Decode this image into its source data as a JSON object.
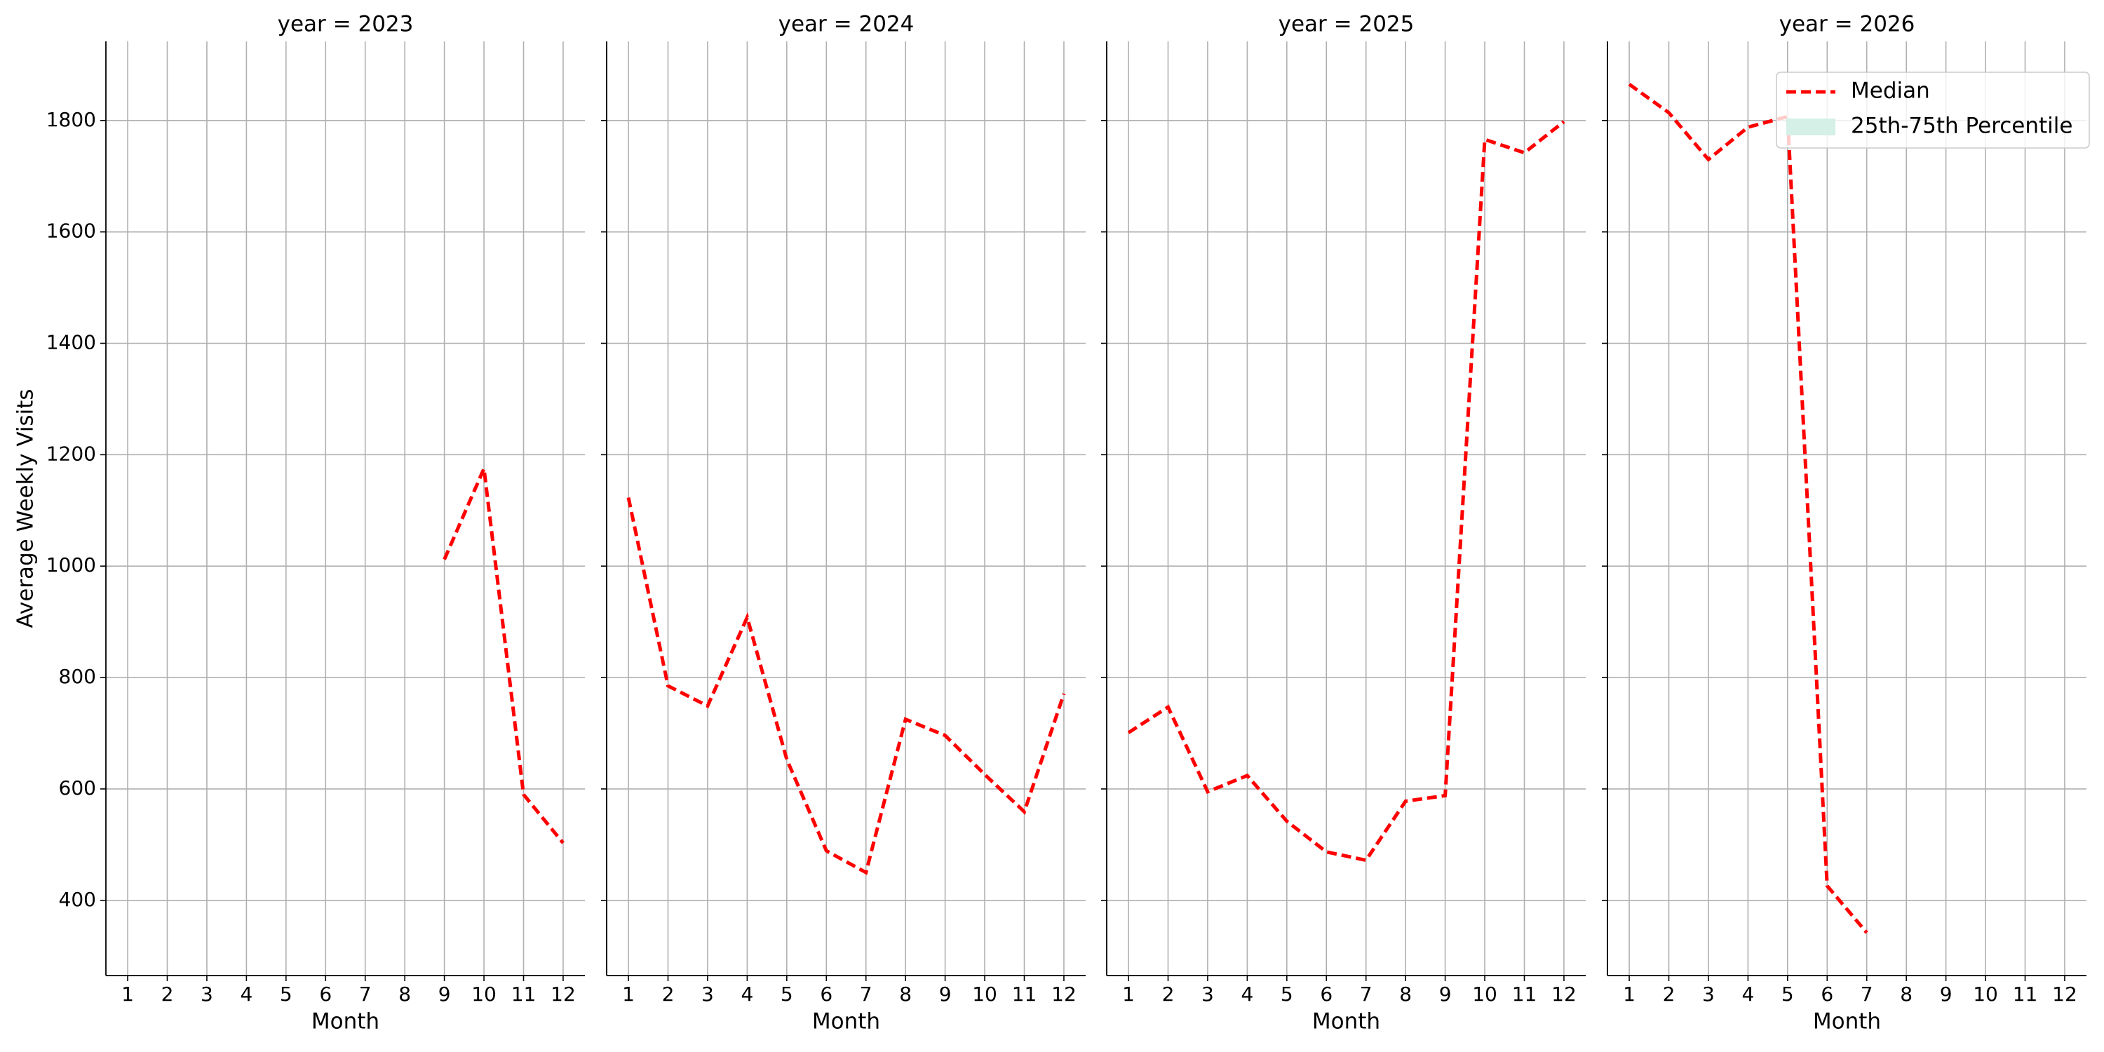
{
  "chart_data": [
    {
      "type": "line",
      "title": "year = 2023",
      "xlabel": "Month",
      "ylabel": "Average Weekly Visits",
      "x": [
        1,
        2,
        3,
        4,
        5,
        6,
        7,
        8,
        9,
        10,
        11,
        12
      ],
      "xlim": [
        0.45,
        12.55
      ],
      "xticks": [
        1,
        2,
        3,
        4,
        5,
        6,
        7,
        8,
        9,
        10,
        11,
        12
      ],
      "ylim": [
        265,
        1942
      ],
      "yticks": [
        400,
        600,
        800,
        1000,
        1200,
        1400,
        1600,
        1800
      ],
      "grid": true,
      "series": [
        {
          "name": "Median",
          "color": "#ff0000",
          "values": [
            null,
            null,
            null,
            null,
            null,
            null,
            null,
            null,
            1012,
            1175,
            590,
            503
          ]
        }
      ]
    },
    {
      "type": "line",
      "title": "year = 2024",
      "xlabel": "Month",
      "x": [
        1,
        2,
        3,
        4,
        5,
        6,
        7,
        8,
        9,
        10,
        11,
        12
      ],
      "xlim": [
        0.45,
        12.55
      ],
      "xticks": [
        1,
        2,
        3,
        4,
        5,
        6,
        7,
        8,
        9,
        10,
        11,
        12
      ],
      "ylim": [
        265,
        1942
      ],
      "yticks": [
        400,
        600,
        800,
        1000,
        1200,
        1400,
        1600,
        1800
      ],
      "grid": true,
      "series": [
        {
          "name": "Median",
          "color": "#ff0000",
          "values": [
            1123,
            785,
            749,
            908,
            653,
            489,
            450,
            725,
            696,
            626,
            559,
            771
          ]
        }
      ]
    },
    {
      "type": "line",
      "title": "year = 2025",
      "xlabel": "Month",
      "x": [
        1,
        2,
        3,
        4,
        5,
        6,
        7,
        8,
        9,
        10,
        11,
        12
      ],
      "xlim": [
        0.45,
        12.55
      ],
      "xticks": [
        1,
        2,
        3,
        4,
        5,
        6,
        7,
        8,
        9,
        10,
        11,
        12
      ],
      "ylim": [
        265,
        1942
      ],
      "yticks": [
        400,
        600,
        800,
        1000,
        1200,
        1400,
        1600,
        1800
      ],
      "grid": true,
      "series": [
        {
          "name": "Median",
          "color": "#ff0000",
          "values": [
            701,
            747,
            595,
            624,
            542,
            487,
            472,
            578,
            588,
            1766,
            1742,
            1798
          ]
        }
      ]
    },
    {
      "type": "line",
      "title": "year = 2026",
      "xlabel": "Month",
      "x": [
        1,
        2,
        3,
        4,
        5,
        6,
        7,
        8,
        9,
        10,
        11,
        12
      ],
      "xlim": [
        0.45,
        12.55
      ],
      "xticks": [
        1,
        2,
        3,
        4,
        5,
        6,
        7,
        8,
        9,
        10,
        11,
        12
      ],
      "ylim": [
        265,
        1942
      ],
      "yticks": [
        400,
        600,
        800,
        1000,
        1200,
        1400,
        1600,
        1800
      ],
      "grid": true,
      "series": [
        {
          "name": "Median",
          "color": "#ff0000",
          "values": [
            1865,
            1814,
            1730,
            1788,
            1807,
            426,
            342,
            null,
            null,
            null,
            null,
            null
          ]
        }
      ],
      "band": {
        "name": "25th-75th Percentile",
        "color": "#d5f0e6"
      },
      "legend": "upper right"
    }
  ]
}
